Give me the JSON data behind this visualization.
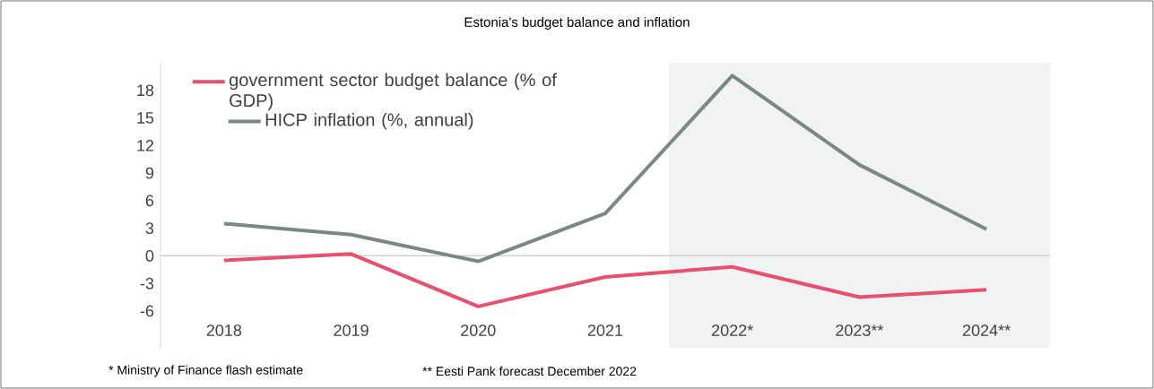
{
  "chart_data": {
    "type": "line",
    "title": "Estonia's budget balance and inflation",
    "categories": [
      "2018",
      "2019",
      "2020",
      "2021",
      "2022*",
      "2023**",
      "2024**"
    ],
    "series": [
      {
        "name": "government sector budget balance (% of GDP)",
        "color": "#e8506e",
        "values": [
          -0.5,
          0.2,
          -5.5,
          -2.3,
          -1.2,
          -4.5,
          -3.7
        ]
      },
      {
        "name": "HICP inflation (%, annual)",
        "color": "#7a8785",
        "values": [
          3.5,
          2.3,
          -0.6,
          4.6,
          19.6,
          9.9,
          2.9
        ]
      }
    ],
    "ylim": [
      -10,
      21
    ],
    "yticks": [
      -6,
      -3,
      0,
      3,
      6,
      9,
      12,
      15,
      18
    ],
    "ref_lines": [
      {
        "axis": "y",
        "value": 0,
        "color": "#c8cdd0"
      }
    ],
    "bands": [
      {
        "axis": "x",
        "from": "2022*",
        "to": "2024**",
        "color": "#f1f2f3"
      }
    ],
    "legend": "top left",
    "grid": false,
    "marker": "none",
    "line_style": "solid",
    "annotations": [
      "* Ministry of Finance flash estimate",
      "** Eesti Pank forecast December 2022"
    ]
  }
}
